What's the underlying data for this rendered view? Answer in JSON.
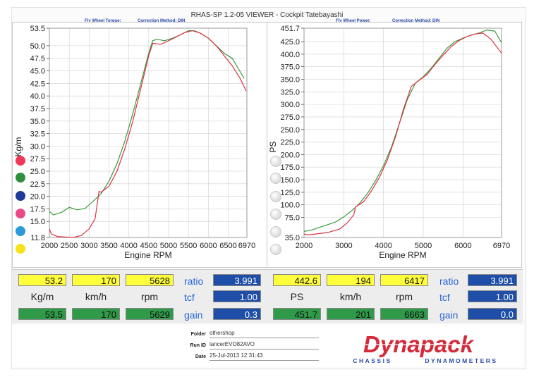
{
  "window_title": "RHAS-SP 1.2-05 VIEWER - Cockpit Tatebayashi",
  "left_header": {
    "metric": "Fly Wheel Torque:",
    "correction": "Correction Method: DIN"
  },
  "right_header": {
    "metric": "Fly Wheel Power:",
    "correction": "Correction Method: DIN"
  },
  "chart_data": [
    {
      "type": "line",
      "xlabel": "Engine RPM",
      "ylabel": "Kg/m",
      "xlim": [
        2000,
        6970
      ],
      "ylim": [
        11.8,
        53.5
      ],
      "xticks": [
        2000,
        2500,
        3000,
        3500,
        4000,
        4500,
        5000,
        5500,
        6000,
        6500,
        6970
      ],
      "yticks": [
        53.5,
        50.0,
        47.5,
        45.0,
        42.5,
        40.0,
        37.5,
        35.0,
        32.5,
        30.0,
        27.5,
        25.0,
        22.5,
        20.0,
        17.5,
        15.0,
        11.8
      ],
      "ytick_labels": [
        "53.5",
        "50.0",
        "47.5",
        "45.0",
        "42.5",
        "40.0",
        "37.5",
        "35.0",
        "32.5",
        "30.0",
        "27.5",
        "25.0",
        "22.5",
        "20.0",
        "17.5",
        "15.0",
        "11.8"
      ],
      "grid": true,
      "series": [
        {
          "color": "#3a9a3a",
          "x": [
            2000,
            2100,
            2300,
            2500,
            2700,
            2900,
            3100,
            3300,
            3500,
            3700,
            3900,
            4100,
            4300,
            4500,
            4600,
            4700,
            4900,
            5100,
            5300,
            5500,
            5650,
            5800,
            6000,
            6200,
            6400,
            6600,
            6750,
            6900
          ],
          "y": [
            17.0,
            16.3,
            16.8,
            17.8,
            17.3,
            17.6,
            19.0,
            20.5,
            23.0,
            26.5,
            31.0,
            36.5,
            42.5,
            48.5,
            51.0,
            51.3,
            51.0,
            51.5,
            52.2,
            53.0,
            53.0,
            52.5,
            51.5,
            50.0,
            48.5,
            47.5,
            45.5,
            43.5
          ]
        },
        {
          "color": "#dd3344",
          "x": [
            2000,
            2050,
            2200,
            2400,
            2600,
            2800,
            3000,
            3150,
            3250,
            3300,
            3500,
            3700,
            3900,
            4100,
            4300,
            4500,
            4600,
            4800,
            5000,
            5200,
            5400,
            5600,
            5800,
            6000,
            6200,
            6400,
            6600,
            6800,
            6950
          ],
          "y": [
            13.5,
            12.5,
            12.0,
            11.9,
            11.8,
            12.2,
            13.5,
            15.5,
            21.0,
            20.8,
            22.0,
            25.0,
            29.5,
            35.0,
            41.5,
            48.0,
            50.5,
            50.3,
            51.0,
            51.8,
            52.6,
            53.0,
            52.5,
            51.5,
            50.0,
            48.0,
            46.0,
            43.5,
            41.0
          ]
        }
      ]
    },
    {
      "type": "line",
      "xlabel": "Engine RPM",
      "ylabel": "PS",
      "xlim": [
        2000,
        6970
      ],
      "ylim": [
        35.0,
        451.7
      ],
      "xticks": [
        2000,
        3000,
        4000,
        5000,
        6000,
        6970
      ],
      "yticks": [
        451.7,
        425.0,
        400.0,
        375.0,
        350.0,
        325.0,
        300.0,
        275.0,
        250.0,
        225.0,
        200.0,
        175.0,
        150.0,
        125.0,
        100.0,
        75.0,
        35.0
      ],
      "ytick_labels": [
        "451.7",
        "425.0",
        "400.0",
        "375.0",
        "350.0",
        "325.0",
        "300.0",
        "275.0",
        "250.0",
        "225.0",
        "200.0",
        "175.0",
        "150.0",
        "125.0",
        "100.0",
        "75.0",
        "35.0"
      ],
      "grid": true,
      "series": [
        {
          "color": "#3a9a3a",
          "x": [
            2000,
            2200,
            2500,
            2800,
            3000,
            3200,
            3400,
            3600,
            3800,
            4000,
            4200,
            4400,
            4600,
            4800,
            5000,
            5200,
            5400,
            5600,
            5800,
            6000,
            6200,
            6400,
            6600,
            6800,
            6970
          ],
          "y": [
            47,
            50,
            58,
            66,
            76,
            88,
            103,
            123,
            148,
            178,
            215,
            262,
            310,
            342,
            355,
            372,
            392,
            412,
            425,
            432,
            438,
            442,
            448,
            446,
            423
          ]
        },
        {
          "color": "#dd3344",
          "x": [
            2000,
            2100,
            2300,
            2600,
            2900,
            3100,
            3250,
            3300,
            3500,
            3700,
            3900,
            4100,
            4300,
            4500,
            4700,
            4900,
            5100,
            5300,
            5500,
            5700,
            5900,
            6100,
            6300,
            6500,
            6700,
            6970
          ],
          "y": [
            42,
            40,
            42,
            45,
            52,
            65,
            80,
            96,
            106,
            128,
            155,
            190,
            235,
            290,
            336,
            348,
            360,
            380,
            398,
            415,
            427,
            435,
            440,
            442,
            430,
            402
          ]
        }
      ]
    }
  ],
  "left_indicator_colors": [
    "#ee3a5a",
    "#2f8f3f",
    "#1e3a9a",
    "#e94a8a",
    "#2a9ad8",
    "#f6e21a"
  ],
  "right_indicator_colors": [
    "#dcdcdc",
    "#dcdcdc",
    "#dcdcdc",
    "#dcdcdc",
    "#dcdcdc",
    "#dcdcdc"
  ],
  "readout": {
    "left": {
      "row1": [
        "53.2",
        "170",
        "5628"
      ],
      "units": [
        "Kg/m",
        "km/h",
        "rpm"
      ],
      "row3": [
        "53.5",
        "170",
        "5629"
      ],
      "ratio_label": "ratio",
      "ratio_value": "3.991",
      "tcf_label": "tcf",
      "tcf_value": "1.00",
      "gain_label": "gain",
      "gain_value": "0.3"
    },
    "right": {
      "row1": [
        "442.6",
        "194",
        "6417"
      ],
      "units": [
        "PS",
        "km/h",
        "rpm"
      ],
      "row3": [
        "451.7",
        "201",
        "6663"
      ],
      "ratio_label": "ratio",
      "ratio_value": "3.991",
      "tcf_label": "tcf",
      "tcf_value": "1.00",
      "gain_label": "gain",
      "gain_value": "0.0"
    }
  },
  "footer": {
    "folder_label": "Folder",
    "folder_value": "othershop",
    "runid_label": "Run ID",
    "runid_value": "lancerEVO82AVO",
    "date_label": "Date",
    "date_value": "25-Jul-2013  12:31:43"
  },
  "logo": {
    "wordmark": "Dynapack",
    "tagline_left": "CHASSIS",
    "tagline_right": "DYNAMOMETERS",
    "color": "#d42a3a"
  }
}
